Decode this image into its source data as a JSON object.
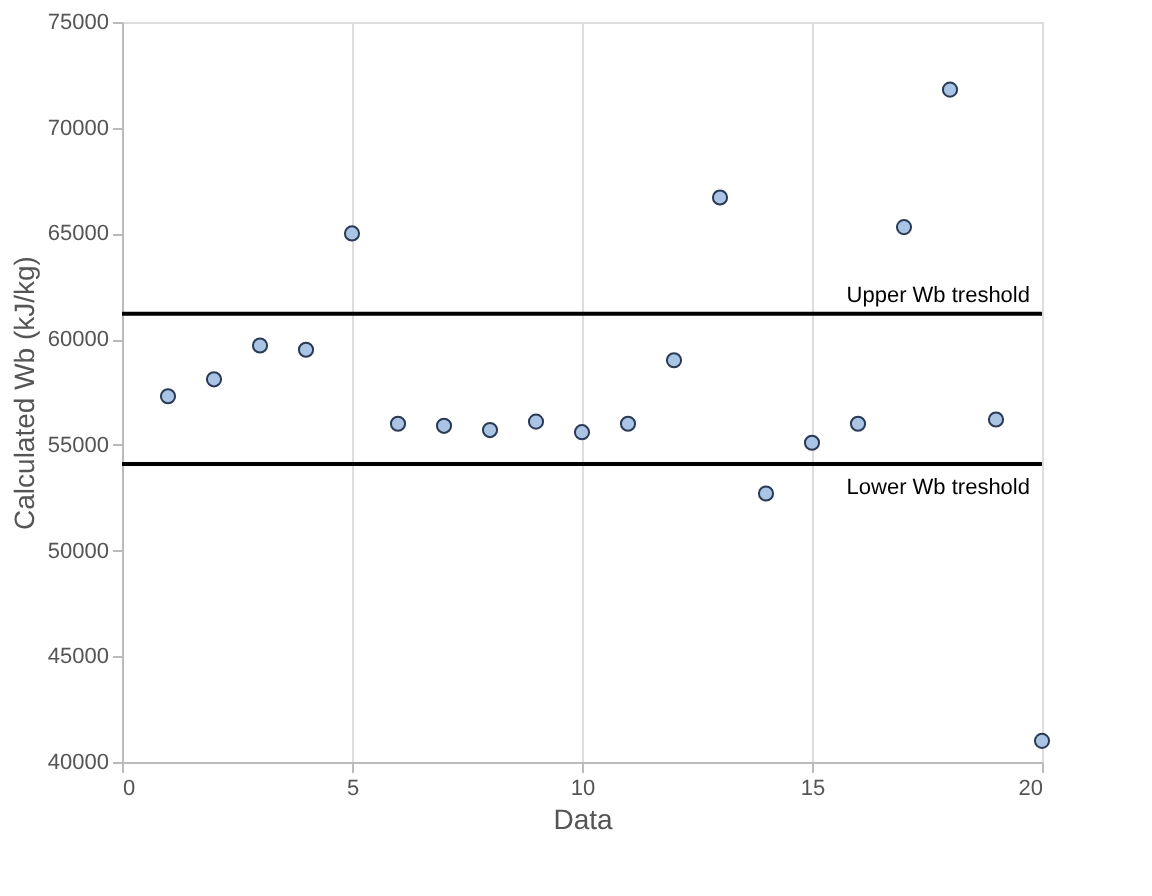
{
  "chart_data": {
    "type": "scatter",
    "xlabel": "Data",
    "ylabel": "Calculated Wb (kJ/kg)",
    "x": [
      1,
      2,
      3,
      4,
      5,
      6,
      7,
      8,
      9,
      10,
      11,
      12,
      13,
      14,
      15,
      16,
      17,
      18,
      19,
      20
    ],
    "series": [
      {
        "color": "#a9c4e4",
        "values": [
          57300,
          58100,
          59700,
          59500,
          65000,
          56000,
          55900,
          55700,
          56100,
          55600,
          56000,
          59000,
          66700,
          52700,
          55100,
          56000,
          65300,
          71800,
          56200,
          41000
        ]
      }
    ],
    "xlim": [
      0,
      20
    ],
    "xticks": [
      0,
      5,
      10,
      15,
      20
    ],
    "ylim": [
      40000,
      75000
    ],
    "yticks": [
      40000,
      45000,
      50000,
      55000,
      60000,
      65000,
      70000,
      75000
    ],
    "grid": "x",
    "marker": "circle",
    "ref_lines": [
      {
        "axis": "y",
        "value": 61200,
        "label": "Upper Wb treshold",
        "color": "#000000"
      },
      {
        "axis": "y",
        "value": 54100,
        "label": "Lower Wb treshold",
        "color": "#000000"
      }
    ]
  }
}
